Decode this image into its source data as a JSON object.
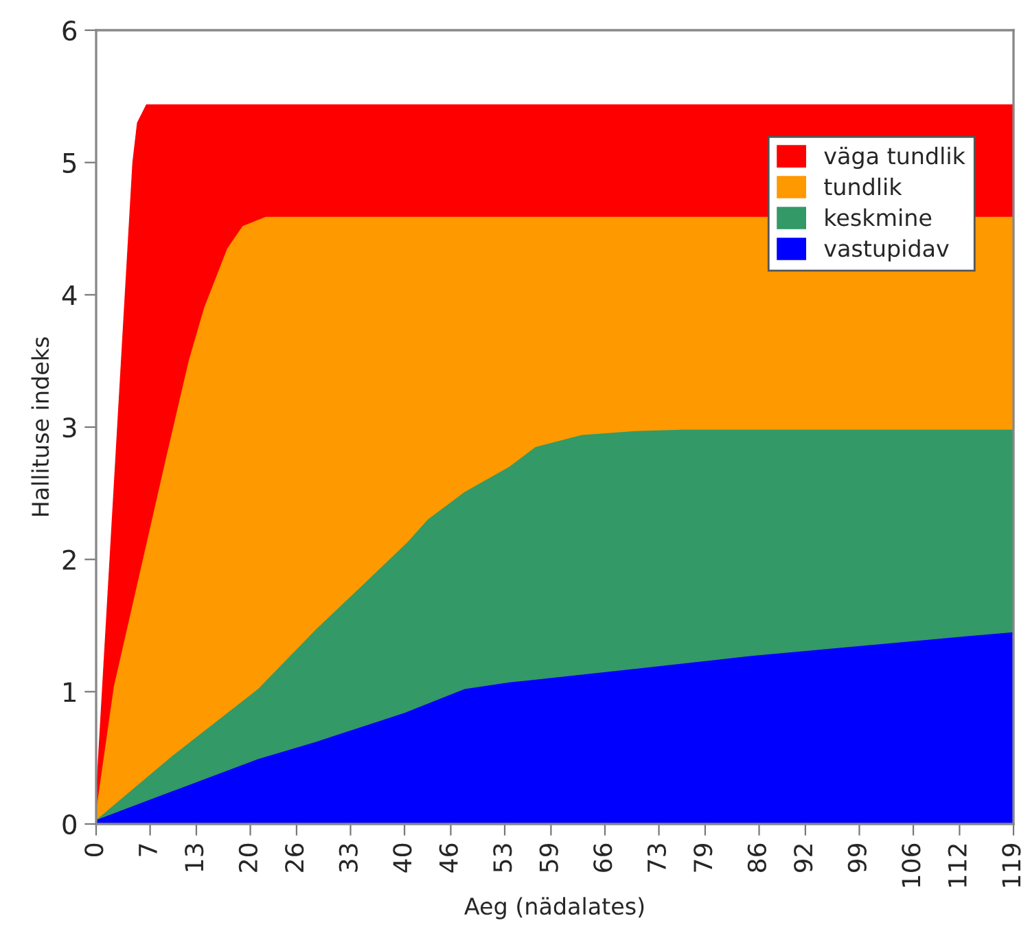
{
  "chart_data": {
    "type": "area",
    "xlabel": "Aeg (nädalates)",
    "ylabel": "Hallituse indeks",
    "xlim": [
      0,
      119
    ],
    "ylim": [
      0,
      6
    ],
    "yticks": [
      0,
      1,
      2,
      3,
      4,
      5,
      6
    ],
    "xticks": [
      0,
      7,
      13,
      20,
      26,
      33,
      40,
      46,
      53,
      59,
      66,
      73,
      79,
      86,
      92,
      99,
      106,
      112,
      119
    ],
    "grid": false,
    "legend": "top right",
    "series": [
      {
        "name": "väga tundlik",
        "color": "#ff0000",
        "x": [
          0,
          4.7,
          5.3,
          6.5,
          119
        ],
        "values": [
          0.25,
          5.0,
          5.3,
          5.44,
          5.44
        ]
      },
      {
        "name": "tundlik",
        "color": "#ff9900",
        "x": [
          0,
          2.3,
          9.2,
          12,
          14,
          17,
          19,
          22,
          119
        ],
        "values": [
          0.1,
          1.04,
          2.8,
          3.5,
          3.9,
          4.35,
          4.52,
          4.59,
          4.59
        ]
      },
      {
        "name": "keskmine",
        "color": "#339966",
        "x": [
          0,
          10,
          21,
          28.5,
          35,
          40.4,
          43,
          47.8,
          53.6,
          57,
          63,
          70,
          76,
          119
        ],
        "values": [
          0.03,
          0.52,
          1.02,
          1.47,
          1.83,
          2.13,
          2.3,
          2.51,
          2.7,
          2.85,
          2.94,
          2.97,
          2.98,
          2.98
        ]
      },
      {
        "name": "vastupidav",
        "color": "#0000ff",
        "x": [
          0,
          10,
          21,
          28.5,
          40,
          47.8,
          53.6,
          71,
          85,
          113,
          119
        ],
        "values": [
          0.03,
          0.25,
          0.49,
          0.62,
          0.84,
          1.02,
          1.07,
          1.18,
          1.27,
          1.42,
          1.45
        ]
      }
    ]
  }
}
